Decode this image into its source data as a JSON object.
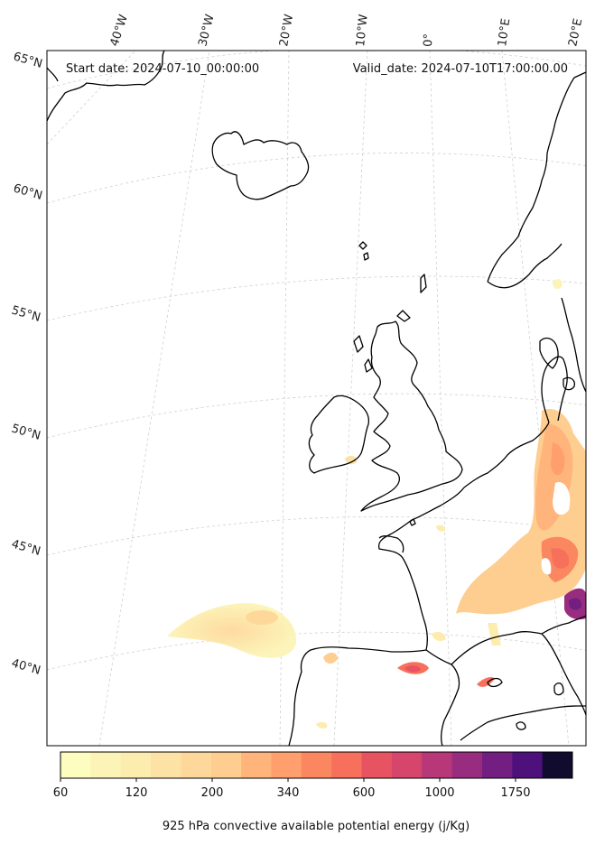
{
  "header": {
    "start_label": "Start date: 2024-07-10_00:00:00",
    "valid_label": "Valid_date: 2024-07-10T17:00:00.00"
  },
  "longitude_labels": [
    "40°W",
    "30°W",
    "20°W",
    "10°W",
    "0°",
    "10°E",
    "20°E"
  ],
  "latitude_labels": [
    "65°N",
    "60°N",
    "55°N",
    "50°N",
    "45°N",
    "40°N"
  ],
  "colorbar": {
    "title": "925 hPa convective available potential energy (j/Kg)",
    "tick_labels": [
      "60",
      "120",
      "200",
      "340",
      "600",
      "1000",
      "1750"
    ],
    "colors": [
      "#fcfdbf",
      "#fcf4b6",
      "#fcecae",
      "#fce2a5",
      "#fed89a",
      "#fecd90",
      "#feb47b",
      "#fe9f6d",
      "#fb8761",
      "#f7705c",
      "#e85362",
      "#d6456c",
      "#b73779",
      "#982d80",
      "#721f81",
      "#4e117b",
      "#110b2f"
    ]
  },
  "map": {
    "projection": "lambert-conformal",
    "variable": "925 hPa CAPE",
    "grid": "dashed"
  }
}
